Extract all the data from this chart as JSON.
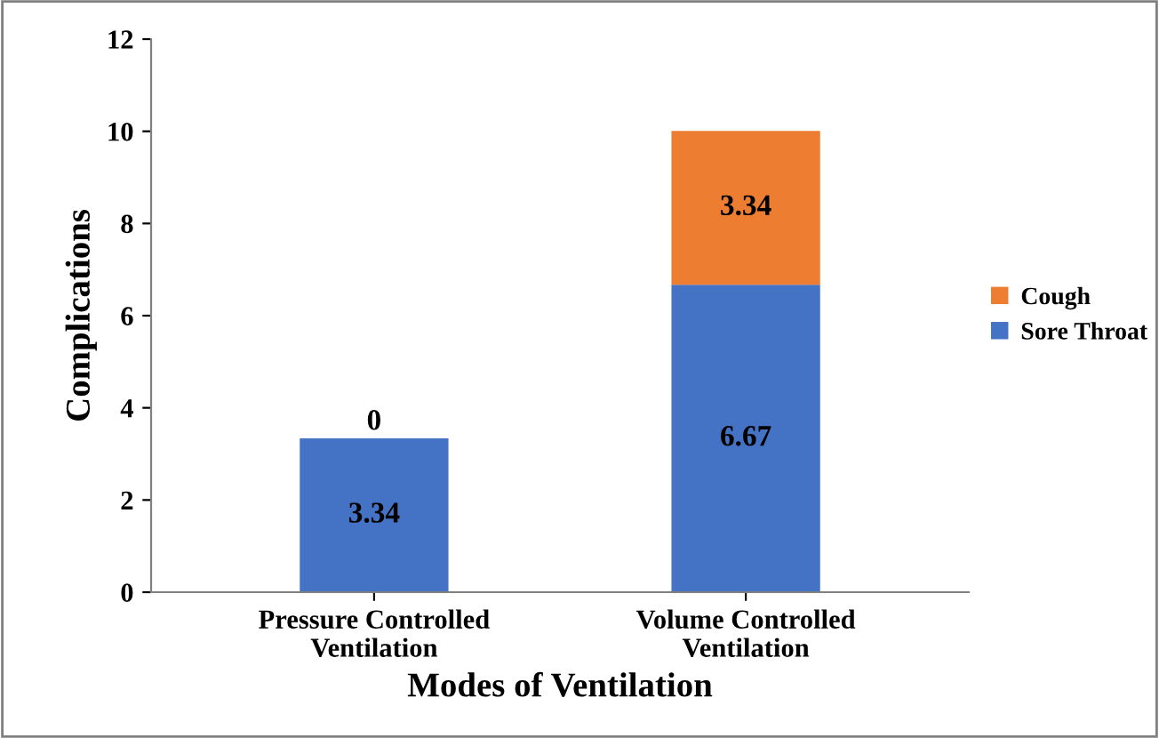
{
  "chart_data": {
    "type": "bar",
    "stacked": true,
    "xlabel": "Modes of Ventilation",
    "ylabel": "Complications",
    "categories": [
      "Pressure Controlled\nVentilation",
      "Volume Controlled\nVentilation"
    ],
    "series": [
      {
        "name": "Sore Throat",
        "color": "#4472c4",
        "values": [
          3.34,
          6.67
        ]
      },
      {
        "name": "Cough",
        "color": "#ed7d31",
        "values": [
          0,
          3.34
        ]
      }
    ],
    "ylim": [
      0,
      12
    ],
    "yticks": [
      0,
      2,
      4,
      6,
      8,
      10,
      12
    ],
    "grid": false,
    "legend": "right",
    "data_labels": true
  }
}
